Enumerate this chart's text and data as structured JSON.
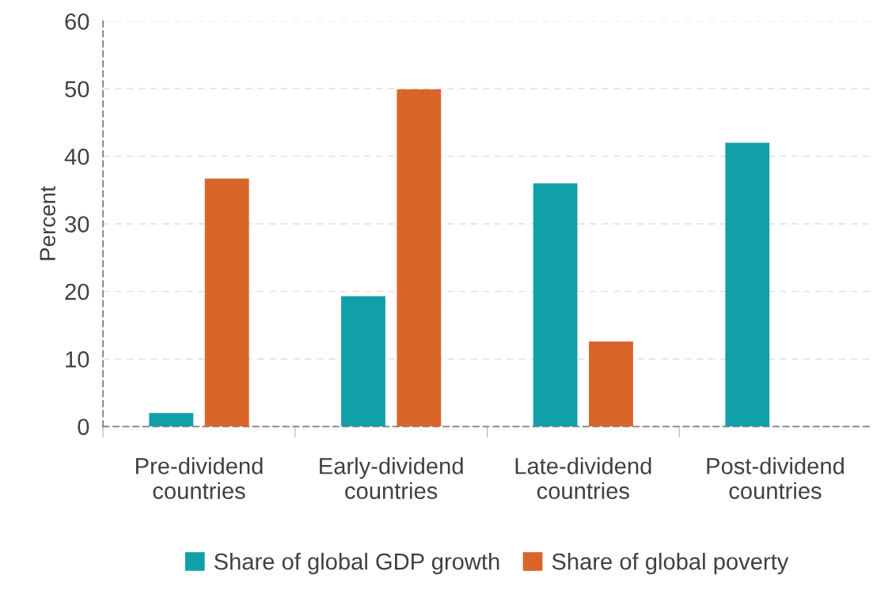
{
  "chart_data": {
    "type": "bar",
    "ylabel": "Percent",
    "categories": [
      "Pre-dividend\ncountries",
      "Early-dividend\ncountries",
      "Late-dividend\ncountries",
      "Post-dividend\ncountries"
    ],
    "series": [
      {
        "name": "Share of global GDP growth",
        "color": "#12a0a8",
        "values": [
          2.0,
          19.3,
          36.0,
          42.0
        ]
      },
      {
        "name": "Share of global poverty",
        "color": "#d9652a",
        "values": [
          36.7,
          49.9,
          12.6,
          null
        ]
      }
    ],
    "ylim": [
      0,
      60
    ],
    "yticks": [
      0,
      10,
      20,
      30,
      40,
      50,
      60
    ],
    "grid": "y",
    "legend": "bottom"
  }
}
